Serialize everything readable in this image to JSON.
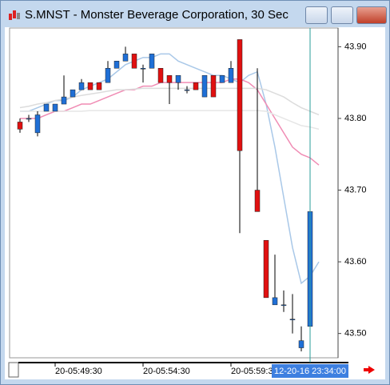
{
  "window_title": "S.MNST - Monster Beverage Corporation, 30 Sec",
  "chart_data": {
    "type": "candlestick",
    "categories": [
      null,
      null,
      null,
      null,
      "20-05:49:30",
      null,
      null,
      null,
      null,
      null,
      null,
      null,
      null,
      null,
      "20-05:54:30",
      null,
      null,
      null,
      null,
      null,
      null,
      null,
      null,
      null,
      "20-05:59:30",
      null,
      null,
      null,
      null,
      null,
      null,
      null,
      null,
      null,
      null
    ],
    "cursor_label": "12-20-16 23:34:00",
    "open": [
      43.795,
      43.8,
      43.78,
      43.81,
      43.81,
      43.82,
      43.83,
      43.84,
      43.85,
      43.85,
      43.85,
      43.87,
      43.88,
      43.89,
      43.87,
      43.87,
      43.87,
      43.86,
      43.85,
      43.84,
      43.85,
      43.83,
      43.86,
      43.85,
      43.85,
      43.91,
      null,
      43.7,
      43.63,
      43.54,
      43.54,
      43.52,
      43.48,
      43.51,
      null
    ],
    "high": [
      43.8,
      43.805,
      43.81,
      43.82,
      43.82,
      43.86,
      43.84,
      43.855,
      43.85,
      43.85,
      43.88,
      43.88,
      43.9,
      43.89,
      43.875,
      43.89,
      43.87,
      43.86,
      43.86,
      43.845,
      43.85,
      43.86,
      43.86,
      43.86,
      43.88,
      43.91,
      null,
      43.87,
      43.63,
      43.61,
      43.56,
      43.555,
      43.51,
      43.7,
      null
    ],
    "low": [
      43.78,
      43.795,
      43.775,
      43.81,
      43.81,
      43.82,
      43.83,
      43.84,
      43.84,
      43.84,
      43.85,
      43.87,
      43.88,
      43.87,
      43.85,
      43.87,
      43.85,
      43.82,
      43.84,
      43.835,
      43.84,
      43.83,
      43.83,
      43.85,
      43.85,
      43.64,
      null,
      43.67,
      43.55,
      43.54,
      43.53,
      43.5,
      43.475,
      43.51,
      null
    ],
    "close": [
      43.785,
      43.8,
      43.805,
      43.82,
      43.82,
      43.83,
      43.84,
      43.85,
      43.84,
      43.84,
      43.87,
      43.88,
      43.89,
      43.87,
      43.87,
      43.89,
      43.85,
      43.85,
      43.86,
      43.84,
      43.84,
      43.86,
      43.83,
      43.86,
      43.87,
      43.755,
      null,
      43.67,
      43.55,
      43.55,
      43.54,
      43.52,
      43.49,
      43.67,
      null
    ],
    "up_color": "#1f6fd6",
    "down_color": "#e01010",
    "lines": [
      {
        "color": "#a9c8e8",
        "values": [
          43.81,
          43.81,
          43.815,
          43.82,
          43.825,
          43.825,
          43.83,
          43.84,
          43.845,
          43.85,
          43.855,
          43.865,
          43.875,
          43.88,
          43.885,
          43.885,
          43.89,
          43.89,
          43.88,
          43.875,
          43.87,
          43.865,
          43.86,
          43.86,
          43.855,
          43.85,
          43.86,
          43.865,
          43.82,
          43.76,
          43.69,
          43.62,
          43.57,
          43.58,
          43.6
        ]
      },
      {
        "color": "#f08cb4",
        "values": [
          43.8,
          43.8,
          43.8,
          43.805,
          43.81,
          43.81,
          43.815,
          43.82,
          43.82,
          43.825,
          43.83,
          43.835,
          43.84,
          43.84,
          43.845,
          43.845,
          43.85,
          43.85,
          43.85,
          43.85,
          43.85,
          43.85,
          43.85,
          43.85,
          43.855,
          43.855,
          43.85,
          43.84,
          43.82,
          43.8,
          43.78,
          43.76,
          43.75,
          43.745,
          43.735
        ]
      },
      {
        "color": "#dcdcdc",
        "values": [
          43.815,
          43.817,
          43.82,
          43.822,
          43.825,
          43.827,
          43.83,
          43.832,
          43.834,
          43.836,
          43.838,
          43.84,
          43.84,
          43.841,
          43.842,
          43.842,
          43.842,
          43.842,
          43.842,
          43.842,
          43.842,
          43.842,
          43.842,
          43.842,
          43.842,
          43.842,
          43.842,
          43.842,
          43.84,
          43.835,
          43.83,
          43.822,
          43.815,
          43.81,
          43.805
        ]
      },
      {
        "color": "#e6e6e6",
        "values": [
          43.81,
          43.81,
          43.81,
          43.81,
          43.81,
          43.81,
          43.81,
          43.81,
          43.811,
          43.811,
          43.811,
          43.811,
          43.811,
          43.811,
          43.811,
          43.811,
          43.811,
          43.811,
          43.811,
          43.811,
          43.811,
          43.811,
          43.811,
          43.811,
          43.811,
          43.811,
          43.811,
          43.811,
          43.81,
          43.805,
          43.8,
          43.795,
          43.79,
          43.788,
          43.785
        ]
      }
    ],
    "ylim": [
      43.465,
      43.925
    ],
    "yticks": [
      {
        "value": 43.5,
        "label": "43.50"
      },
      {
        "value": 43.6,
        "label": "43.60"
      },
      {
        "value": 43.7,
        "label": "43.70"
      },
      {
        "value": 43.8,
        "label": "43.80"
      },
      {
        "value": 43.9,
        "label": "43.90"
      }
    ]
  }
}
